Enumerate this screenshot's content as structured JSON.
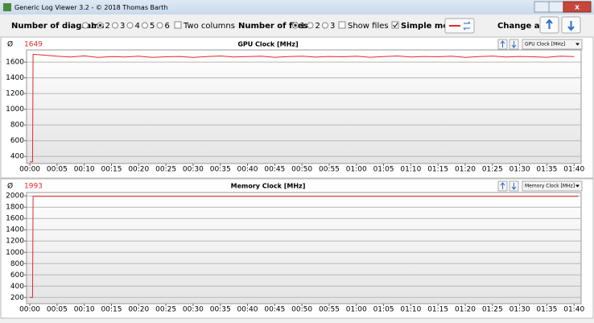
{
  "window_title": "Generic Log Viewer 3.2 - © 2018 Thomas Barth",
  "toolbar": {
    "diagrams_label": "Number of diagrams",
    "diagram_options": [
      "1",
      "2",
      "3",
      "4",
      "5",
      "6"
    ],
    "two_columns": "Two columns",
    "files_label": "Number of files",
    "file_options": [
      "1",
      "2",
      "3"
    ],
    "show_files": "Show files",
    "simple_mode": "Simple mode",
    "change_all": "Change all"
  },
  "chart_data": [
    {
      "type": "line",
      "title": "GPU Clock [MHz]",
      "dropdown": "GPU Clock [MHz]",
      "mean_label": "Ø",
      "mean": 1649,
      "x": [
        0,
        0.5,
        0.6,
        2.5,
        5,
        7.5,
        10,
        12.5,
        15,
        17.5,
        20,
        22.5,
        25,
        27.5,
        30,
        32.5,
        35,
        37.5,
        40,
        42.5,
        45,
        47.5,
        50,
        52.5,
        55,
        57.5,
        60,
        62.5,
        65,
        67.5,
        70,
        72.5,
        75,
        77.5,
        80,
        82.5,
        85,
        87.5,
        90,
        92.5,
        95,
        97.5,
        100
      ],
      "series": [
        {
          "name": "GPU Clock",
          "color": "#e8282b",
          "values": [
            330,
            330,
            1700,
            1690,
            1675,
            1665,
            1680,
            1660,
            1670,
            1665,
            1675,
            1660,
            1668,
            1672,
            1660,
            1670,
            1678,
            1665,
            1670,
            1675,
            1662,
            1670,
            1676,
            1664,
            1672,
            1668,
            1675,
            1662,
            1670,
            1678,
            1665,
            1672,
            1668,
            1675,
            1660,
            1670,
            1677,
            1665,
            1672,
            1668,
            1662,
            1675,
            1670
          ]
        }
      ],
      "xlim": [
        -0.6,
        101.3
      ],
      "ylim": [
        310,
        1755
      ],
      "xticks": [
        {
          "value": 0,
          "label": "00:00"
        },
        {
          "value": 5,
          "label": "00:05"
        },
        {
          "value": 10,
          "label": "00:10"
        },
        {
          "value": 15,
          "label": "00:15"
        },
        {
          "value": 20,
          "label": "00:20"
        },
        {
          "value": 25,
          "label": "00:25"
        },
        {
          "value": 30,
          "label": "00:30"
        },
        {
          "value": 35,
          "label": "00:35"
        },
        {
          "value": 40,
          "label": "00:40"
        },
        {
          "value": 45,
          "label": "00:45"
        },
        {
          "value": 50,
          "label": "00:50"
        },
        {
          "value": 55,
          "label": "00:55"
        },
        {
          "value": 60,
          "label": "01:00"
        },
        {
          "value": 65,
          "label": "01:05"
        },
        {
          "value": 70,
          "label": "01:10"
        },
        {
          "value": 75,
          "label": "01:15"
        },
        {
          "value": 80,
          "label": "01:20"
        },
        {
          "value": 85,
          "label": "01:25"
        },
        {
          "value": 90,
          "label": "01:30"
        },
        {
          "value": 95,
          "label": "01:35"
        },
        {
          "value": 100,
          "label": "01:40"
        }
      ],
      "yticks": [
        400,
        600,
        800,
        1000,
        1200,
        1400,
        1600
      ],
      "grid": true
    },
    {
      "type": "line",
      "title": "Memory Clock [MHz]",
      "dropdown": "Memory Clock [MHz]",
      "mean_label": "Ø",
      "mean": 1993,
      "x": [
        0,
        0.5,
        0.6,
        100.8
      ],
      "series": [
        {
          "name": "Memory Clock",
          "color": "#e8282b",
          "values": [
            200,
            200,
            1993,
            1993
          ]
        }
      ],
      "xlim": [
        -0.6,
        101.3
      ],
      "ylim": [
        90,
        2060
      ],
      "xticks": [
        {
          "value": 0,
          "label": "00:00"
        },
        {
          "value": 5,
          "label": "00:05"
        },
        {
          "value": 10,
          "label": "00:10"
        },
        {
          "value": 15,
          "label": "00:15"
        },
        {
          "value": 20,
          "label": "00:20"
        },
        {
          "value": 25,
          "label": "00:25"
        },
        {
          "value": 30,
          "label": "00:30"
        },
        {
          "value": 35,
          "label": "00:35"
        },
        {
          "value": 40,
          "label": "00:40"
        },
        {
          "value": 45,
          "label": "00:45"
        },
        {
          "value": 50,
          "label": "00:50"
        },
        {
          "value": 55,
          "label": "00:55"
        },
        {
          "value": 60,
          "label": "01:00"
        },
        {
          "value": 65,
          "label": "01:05"
        },
        {
          "value": 70,
          "label": "01:10"
        },
        {
          "value": 75,
          "label": "01:15"
        },
        {
          "value": 80,
          "label": "01:20"
        },
        {
          "value": 85,
          "label": "01:25"
        },
        {
          "value": 90,
          "label": "01:30"
        },
        {
          "value": 95,
          "label": "01:35"
        },
        {
          "value": 100,
          "label": "01:40"
        }
      ],
      "yticks": [
        200,
        400,
        600,
        800,
        1000,
        1200,
        1400,
        1600,
        1800,
        2000
      ],
      "grid": true
    }
  ]
}
